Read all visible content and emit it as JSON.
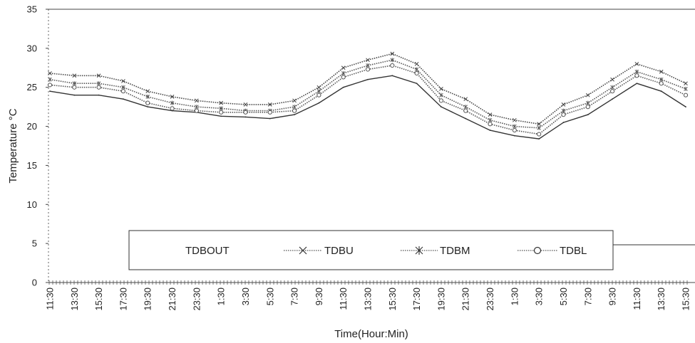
{
  "chart_data": {
    "type": "line",
    "title": "",
    "xlabel": "Time(Hour:Min)",
    "ylabel": "Temperature °C",
    "ylim": [
      0,
      35
    ],
    "yticks": [
      0,
      5,
      10,
      15,
      20,
      25,
      30,
      35
    ],
    "x_tick_labels": [
      "11:30",
      "13:30",
      "15:30",
      "17:30",
      "19:30",
      "21:30",
      "23:30",
      "1:30",
      "3:30",
      "5:30",
      "7:30",
      "9:30",
      "11:30",
      "13:30",
      "15:30",
      "17:30",
      "19:30",
      "21:30",
      "23:30",
      "1:30",
      "3:30",
      "5:30",
      "7:30",
      "9:30",
      "11:30",
      "13:30",
      "15:30"
    ],
    "grid": false,
    "legend_position": "bottom-center",
    "series": [
      {
        "name": "TDBOUT",
        "color": "#333333",
        "style": "solid",
        "values": [
          24.5,
          24.0,
          24.0,
          23.5,
          22.5,
          22.0,
          21.8,
          21.3,
          21.2,
          21.0,
          21.5,
          23.0,
          25.0,
          26.0,
          26.5,
          25.5,
          22.5,
          21.0,
          19.5,
          18.8,
          18.4,
          20.5,
          21.5,
          23.5,
          25.5,
          24.5,
          22.5
        ]
      },
      {
        "name": "TDBU",
        "color": "#444444",
        "style": "dotted-x",
        "values": [
          26.8,
          26.5,
          26.5,
          25.8,
          24.5,
          23.8,
          23.3,
          23.0,
          22.8,
          22.8,
          23.3,
          25.0,
          27.5,
          28.5,
          29.3,
          28.0,
          24.8,
          23.5,
          21.5,
          20.8,
          20.3,
          22.8,
          24.0,
          26.0,
          28.0,
          27.0,
          25.5
        ]
      },
      {
        "name": "TDBM",
        "color": "#555555",
        "style": "dotted-star",
        "values": [
          26.0,
          25.5,
          25.5,
          25.0,
          23.8,
          23.0,
          22.5,
          22.3,
          22.0,
          22.0,
          22.5,
          24.5,
          26.8,
          27.8,
          28.5,
          27.3,
          24.0,
          22.5,
          20.8,
          20.0,
          19.8,
          22.0,
          23.0,
          25.0,
          27.0,
          26.0,
          24.8
        ]
      },
      {
        "name": "TDBL",
        "color": "#555555",
        "style": "dotted-circle",
        "values": [
          25.3,
          25.0,
          25.0,
          24.5,
          23.0,
          22.3,
          22.0,
          21.8,
          21.8,
          21.8,
          22.0,
          24.0,
          26.3,
          27.3,
          27.8,
          26.8,
          23.3,
          22.0,
          20.3,
          19.5,
          19.0,
          21.5,
          22.5,
          24.5,
          26.5,
          25.5,
          24.0
        ]
      }
    ]
  }
}
